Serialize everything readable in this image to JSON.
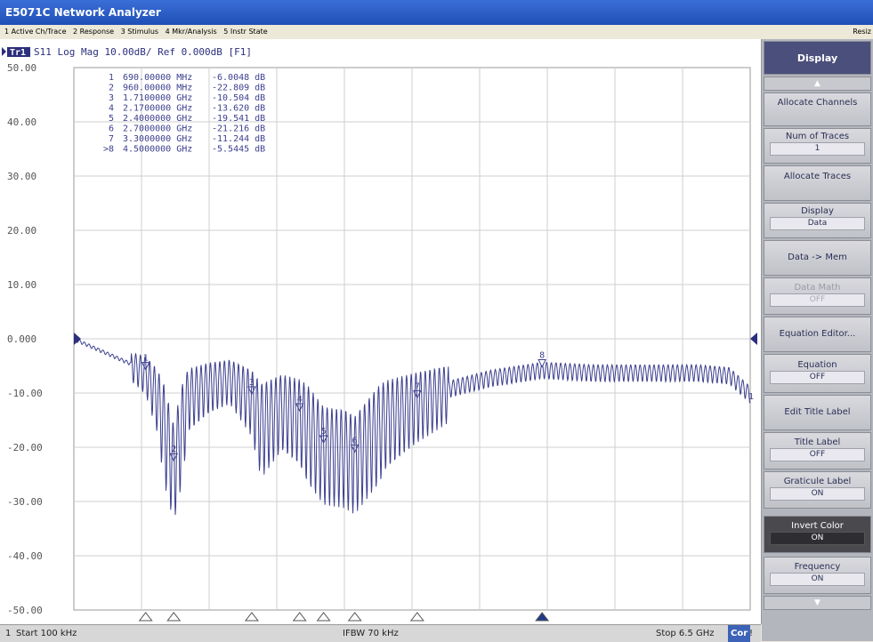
{
  "window": {
    "title": "E5071C Network Analyzer"
  },
  "menu": {
    "items": [
      "1 Active Ch/Trace",
      "2 Response",
      "3 Stimulus",
      "4 Mkr/Analysis",
      "5 Instr State"
    ],
    "right": "Resiz"
  },
  "trace": {
    "badge": "Tr1",
    "header": "S11 Log Mag 10.00dB/ Ref 0.000dB [F1]",
    "ref_label": "0.000",
    "end_marker": "1"
  },
  "markers": [
    {
      "id": "1",
      "freq": "690.00000 MHz",
      "value": "-6.0048 dB"
    },
    {
      "id": "2",
      "freq": "960.00000 MHz",
      "value": "-22.809 dB"
    },
    {
      "id": "3",
      "freq": "1.7100000 GHz",
      "value": "-10.504 dB"
    },
    {
      "id": "4",
      "freq": "2.1700000 GHz",
      "value": "-13.620 dB"
    },
    {
      "id": "5",
      "freq": "2.4000000 GHz",
      "value": "-19.541 dB"
    },
    {
      "id": "6",
      "freq": "2.7000000 GHz",
      "value": "-21.216 dB"
    },
    {
      "id": "7",
      "freq": "3.3000000 GHz",
      "value": "-11.244 dB"
    },
    {
      "id": ">8",
      "freq": "4.5000000 GHz",
      "value": "-5.5445 dB"
    }
  ],
  "chart_data": {
    "type": "line",
    "title": "S11 Log Mag 10.00dB/ Ref 0.000dB [F1]",
    "xlabel": "",
    "ylabel": "",
    "xlim": [
      0.0001,
      6.5
    ],
    "ylim": [
      -50,
      50
    ],
    "yticks": [
      "50.00",
      "40.00",
      "30.00",
      "20.00",
      "10.00",
      "0.000",
      "-10.00",
      "-20.00",
      "-30.00",
      "-40.00",
      "-50.00"
    ],
    "grid": true,
    "series": [
      {
        "name": "S11",
        "x": [
          0.0001,
          0.3,
          0.6,
          0.69,
          0.8,
          0.9,
          0.96,
          1.1,
          1.3,
          1.5,
          1.71,
          1.8,
          2.0,
          2.17,
          2.4,
          2.6,
          2.7,
          3.0,
          3.3,
          3.6,
          4.0,
          4.5,
          5.0,
          5.5,
          6.0,
          6.3,
          6.5
        ],
        "values": [
          0.0,
          -2.5,
          -5.0,
          -6.0,
          -10.0,
          -18.0,
          -22.8,
          -10.0,
          -8.0,
          -7.0,
          -10.5,
          -15.0,
          -12.0,
          -13.6,
          -19.5,
          -20.0,
          -21.2,
          -14.0,
          -11.2,
          -9.0,
          -7.0,
          -5.5,
          -6.0,
          -6.0,
          -6.0,
          -6.5,
          -10.0
        ]
      }
    ],
    "marker_freqs_ghz": [
      0.69,
      0.96,
      1.71,
      2.17,
      2.4,
      2.7,
      3.3,
      4.5
    ],
    "active_marker": ">8"
  },
  "status": {
    "channel": "1",
    "start": "Start 100 kHz",
    "ifbw": "IFBW 70 kHz",
    "stop": "Stop 6.5 GHz",
    "cor": "Cor",
    "extra": "!"
  },
  "panel": {
    "header": "Display",
    "up_arrow": "▲",
    "down_arrow": "▼",
    "buttons": [
      {
        "label": "Allocate Channels"
      },
      {
        "label": "Num of Traces",
        "value": "1"
      },
      {
        "label": "Allocate Traces"
      },
      {
        "label": "Display",
        "value": "Data"
      },
      {
        "label": "Data -> Mem"
      },
      {
        "label": "Data Math",
        "value": "OFF"
      },
      {
        "label": "Equation Editor..."
      },
      {
        "label": "Equation",
        "value": "OFF"
      },
      {
        "label": "Edit Title Label"
      },
      {
        "label": "Title Label",
        "value": "OFF"
      },
      {
        "label": "Graticule Label",
        "value": "ON"
      },
      {
        "label": "Invert Color",
        "value": "ON"
      },
      {
        "label": "Frequency",
        "value": "ON"
      }
    ]
  }
}
